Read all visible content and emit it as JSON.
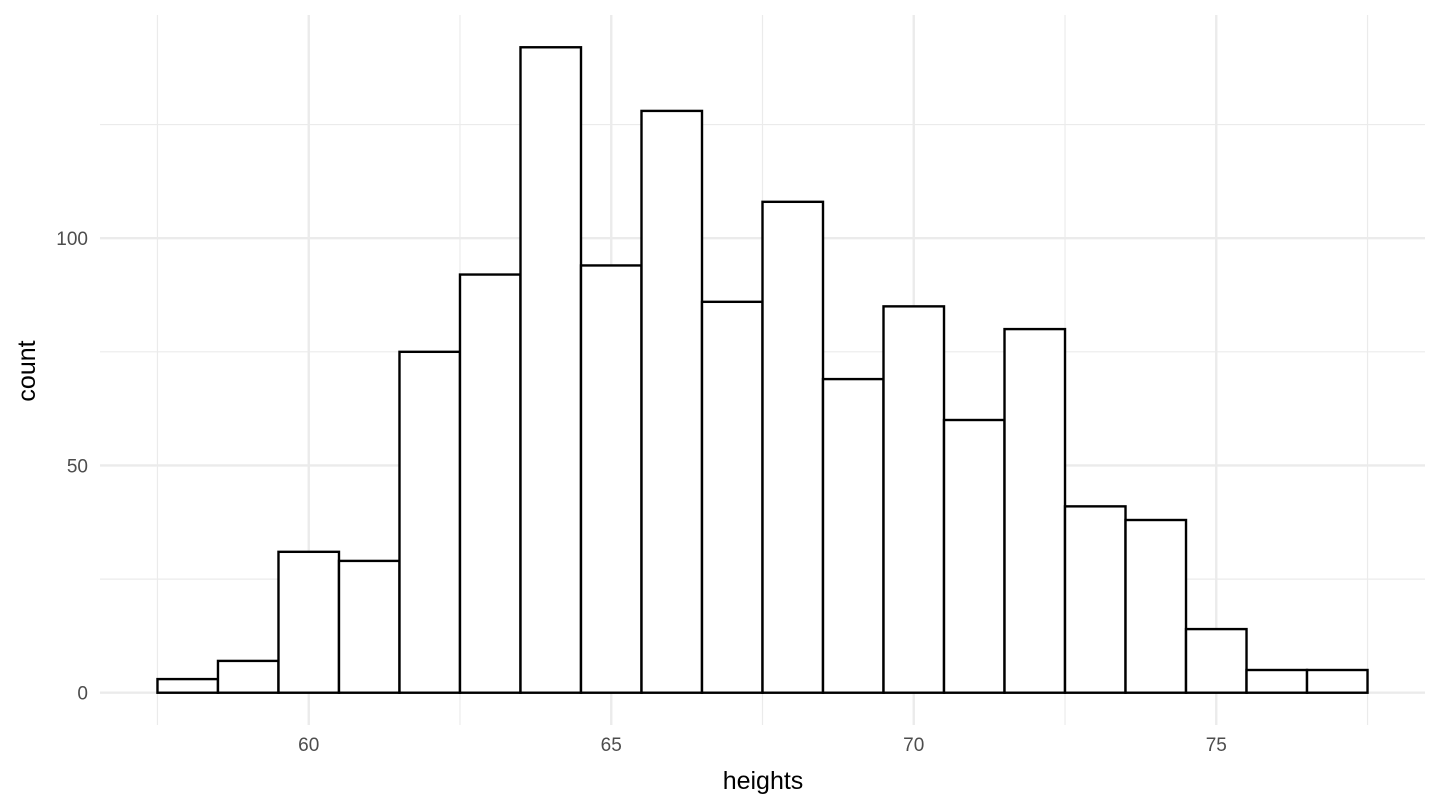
{
  "chart_data": {
    "type": "bar",
    "subtype": "histogram",
    "title": "",
    "xlabel": "heights",
    "ylabel": "count",
    "bin_width": 1,
    "bins": [
      {
        "start": 57.5,
        "end": 58.5,
        "count": 3
      },
      {
        "start": 58.5,
        "end": 59.5,
        "count": 7
      },
      {
        "start": 59.5,
        "end": 60.5,
        "count": 31
      },
      {
        "start": 60.5,
        "end": 61.5,
        "count": 29
      },
      {
        "start": 61.5,
        "end": 62.5,
        "count": 75
      },
      {
        "start": 62.5,
        "end": 63.5,
        "count": 92
      },
      {
        "start": 63.5,
        "end": 64.5,
        "count": 142
      },
      {
        "start": 64.5,
        "end": 65.5,
        "count": 94
      },
      {
        "start": 65.5,
        "end": 66.5,
        "count": 128
      },
      {
        "start": 66.5,
        "end": 67.5,
        "count": 86
      },
      {
        "start": 67.5,
        "end": 68.5,
        "count": 108
      },
      {
        "start": 68.5,
        "end": 69.5,
        "count": 69
      },
      {
        "start": 69.5,
        "end": 70.5,
        "count": 85
      },
      {
        "start": 70.5,
        "end": 71.5,
        "count": 60
      },
      {
        "start": 71.5,
        "end": 72.5,
        "count": 80
      },
      {
        "start": 72.5,
        "end": 73.5,
        "count": 41
      },
      {
        "start": 73.5,
        "end": 74.5,
        "count": 38
      },
      {
        "start": 74.5,
        "end": 75.5,
        "count": 14
      },
      {
        "start": 75.5,
        "end": 76.5,
        "count": 5
      },
      {
        "start": 76.5,
        "end": 77.5,
        "count": 5
      }
    ],
    "xlim": [
      56.55,
      78.45
    ],
    "ylim": [
      -7.1,
      149.1
    ],
    "x_ticks": [
      60,
      65,
      70,
      75
    ],
    "x_tick_labels": [
      "60",
      "65",
      "70",
      "75"
    ],
    "x_minor_ticks": [
      57.5,
      62.5,
      67.5,
      72.5,
      77.5
    ],
    "y_ticks": [
      0,
      50,
      100
    ],
    "y_tick_labels": [
      "0",
      "50",
      "100"
    ],
    "y_minor_ticks": [
      25,
      75,
      125
    ],
    "grid": true,
    "bar_fill": "#ffffff",
    "bar_stroke": "#000000",
    "grid_color": "#ebebeb",
    "legend": "none"
  }
}
